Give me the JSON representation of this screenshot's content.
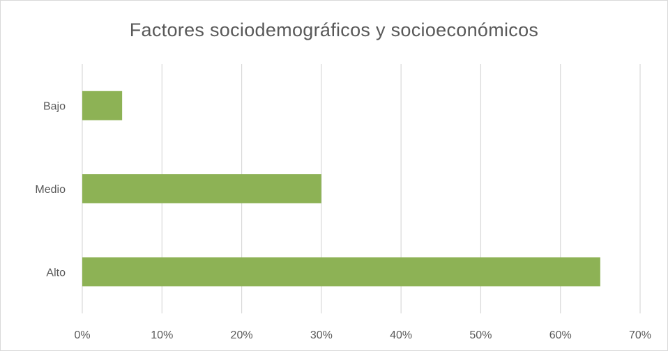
{
  "chart_data": {
    "type": "bar",
    "orientation": "horizontal",
    "title": "Factores sociodemográficos y socioeconómicos",
    "categories": [
      "Bajo",
      "Medio",
      "Alto"
    ],
    "values": [
      0.05,
      0.3,
      0.65
    ],
    "xlim": [
      0,
      0.7
    ],
    "xticks": [
      0,
      0.1,
      0.2,
      0.3,
      0.4,
      0.5,
      0.6,
      0.7
    ],
    "xtick_labels": [
      "0%",
      "10%",
      "20%",
      "30%",
      "40%",
      "50%",
      "60%",
      "70%"
    ],
    "xlabel": "",
    "ylabel": "",
    "grid": "vertical",
    "legend": "none",
    "bar_color": "#8db255",
    "grid_color": "#d9d9d9",
    "text_color": "#595959"
  }
}
